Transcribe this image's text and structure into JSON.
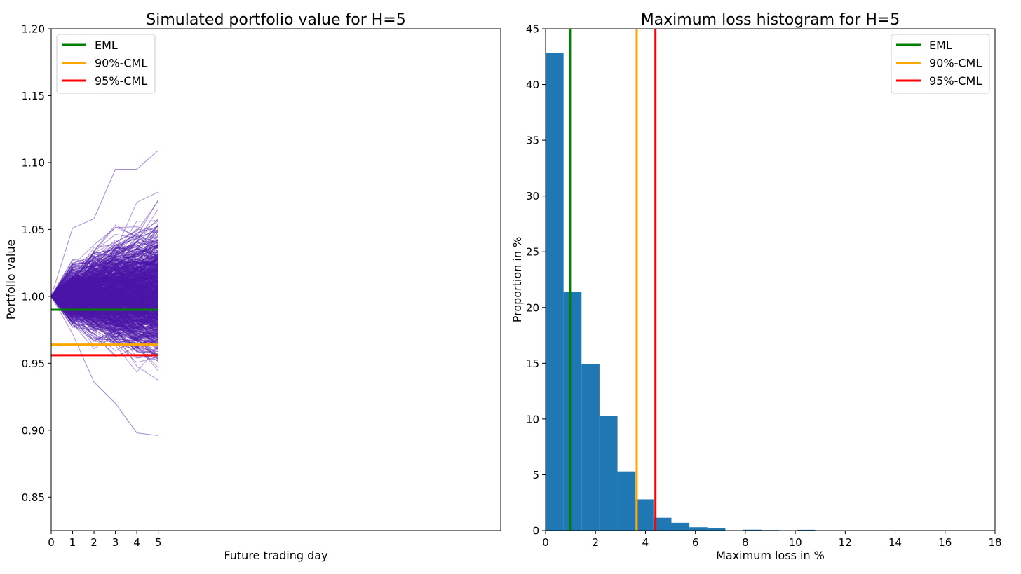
{
  "chart_data": [
    {
      "type": "line",
      "title": "Simulated portfolio value for H=5",
      "xlabel": "Future trading day",
      "ylabel": "Portfolio value",
      "xlim": [
        0,
        21
      ],
      "ylim": [
        0.825,
        1.2
      ],
      "xticks": [
        0,
        1,
        2,
        3,
        4,
        5
      ],
      "xtick_labels": [
        "0",
        "1",
        "2",
        "3",
        "4",
        "5"
      ],
      "yticks": [
        0.85,
        0.9,
        0.95,
        1.0,
        1.05,
        1.1,
        1.15,
        1.2
      ],
      "ytick_labels": [
        "0.85",
        "0.90",
        "0.95",
        "1.00",
        "1.05",
        "1.10",
        "1.15",
        "1.20"
      ],
      "paths_color": "#4b16a8",
      "paths_start": 1.0,
      "paths_days": 5,
      "paths_envelope": {
        "upper": [
          1.0,
          1.051,
          1.058,
          1.095,
          1.095,
          1.109
        ],
        "lower": [
          1.0,
          0.972,
          0.936,
          0.92,
          0.898,
          0.896
        ]
      },
      "hlines": [
        {
          "name": "EML",
          "y": 0.99,
          "color": "#008000"
        },
        {
          "name": "90%-CML",
          "y": 0.964,
          "color": "#ffa500"
        },
        {
          "name": "95%-CML",
          "y": 0.956,
          "color": "#ff0000"
        }
      ],
      "legend": {
        "placement": "upper-left",
        "entries": [
          {
            "label": "EML",
            "color": "#008000"
          },
          {
            "label": "90%-CML",
            "color": "#ffa500"
          },
          {
            "label": "95%-CML",
            "color": "#ff0000"
          }
        ]
      }
    },
    {
      "type": "bar",
      "title": "Maximum loss histogram for H=5",
      "xlabel": "Maximum loss in %",
      "ylabel": "Proportion in %",
      "xlim": [
        0,
        18
      ],
      "ylim": [
        0,
        45
      ],
      "xticks": [
        0,
        2,
        4,
        6,
        8,
        10,
        12,
        14,
        16,
        18
      ],
      "xtick_labels": [
        "0",
        "2",
        "4",
        "6",
        "8",
        "10",
        "12",
        "14",
        "16",
        "18"
      ],
      "yticks": [
        0,
        5,
        10,
        15,
        20,
        25,
        30,
        35,
        40,
        45
      ],
      "ytick_labels": [
        "0",
        "5",
        "10",
        "15",
        "20",
        "25",
        "30",
        "35",
        "40",
        "45"
      ],
      "bar_color": "#1f77b4",
      "bin_width": 0.72,
      "bins_start": [
        0.0,
        0.72,
        1.44,
        2.16,
        2.88,
        3.6,
        4.32,
        5.04,
        5.76,
        6.48,
        7.2,
        7.92,
        8.64,
        9.36,
        10.08,
        10.8
      ],
      "values": [
        42.8,
        21.4,
        14.9,
        10.3,
        5.3,
        2.8,
        1.15,
        0.7,
        0.3,
        0.25,
        0.0,
        0.08,
        0.05,
        0.0,
        0.07,
        0.0
      ],
      "vlines": [
        {
          "name": "EML",
          "x": 0.98,
          "color": "#008000"
        },
        {
          "name": "90%-CML",
          "x": 3.65,
          "color": "#ffa500"
        },
        {
          "name": "95%-CML",
          "x": 4.4,
          "color": "#ff0000"
        }
      ],
      "legend": {
        "placement": "upper-right",
        "entries": [
          {
            "label": "EML",
            "color": "#008000"
          },
          {
            "label": "90%-CML",
            "color": "#ffa500"
          },
          {
            "label": "95%-CML",
            "color": "#ff0000"
          }
        ]
      }
    }
  ]
}
